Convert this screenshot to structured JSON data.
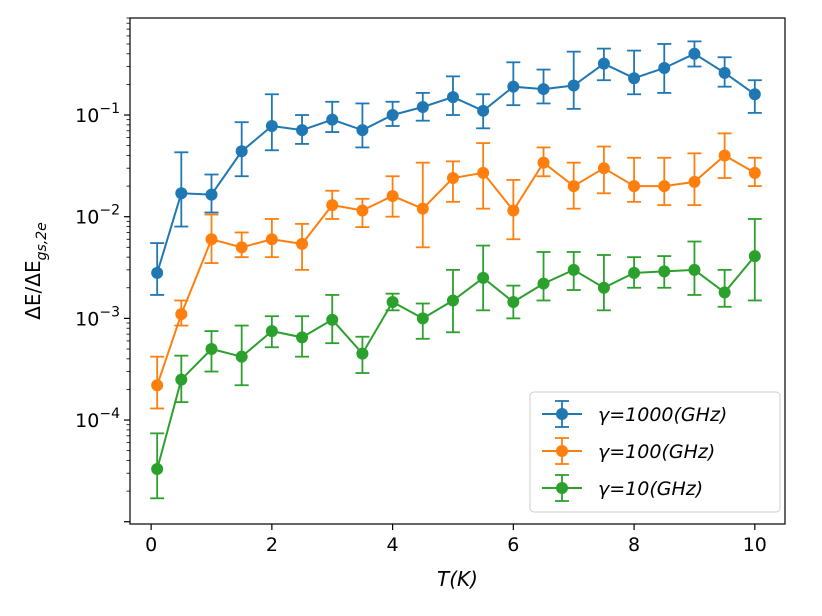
{
  "chart_data": {
    "type": "line",
    "xlabel": "T(K)",
    "ylabel": "ΔE/ΔE_gs,2e",
    "x_ticks": [
      "0",
      "2",
      "4",
      "6",
      "8",
      "10"
    ],
    "y_ticks": [
      "10^-4",
      "10^-3",
      "10^-2",
      "10^-1"
    ],
    "xlim": [
      -0.35,
      10.5
    ],
    "ylim": [
      9.5e-06,
      0.9
    ],
    "yscale": "log",
    "grid": false,
    "legend_position": "lower right",
    "x": [
      0.1,
      0.5,
      1.0,
      1.5,
      2.0,
      2.5,
      3.0,
      3.5,
      4.0,
      4.5,
      5.0,
      5.5,
      6.0,
      6.5,
      7.0,
      7.5,
      8.0,
      8.5,
      9.0,
      9.5,
      10.0
    ],
    "series": [
      {
        "name": "γ=1000(GHz)",
        "color": "#1f77b4",
        "values": [
          0.0028,
          0.017,
          0.0165,
          0.044,
          0.078,
          0.071,
          0.09,
          0.071,
          0.1,
          0.12,
          0.15,
          0.11,
          0.19,
          0.18,
          0.195,
          0.32,
          0.23,
          0.29,
          0.4,
          0.26,
          0.16
        ],
        "err_low": [
          0.0017,
          0.008,
          0.011,
          0.025,
          0.045,
          0.052,
          0.068,
          0.048,
          0.078,
          0.088,
          0.1,
          0.074,
          0.125,
          0.13,
          0.115,
          0.22,
          0.16,
          0.165,
          0.3,
          0.19,
          0.105
        ],
        "err_high": [
          0.0055,
          0.043,
          0.026,
          0.085,
          0.16,
          0.1,
          0.135,
          0.13,
          0.135,
          0.165,
          0.24,
          0.16,
          0.33,
          0.28,
          0.42,
          0.45,
          0.43,
          0.5,
          0.53,
          0.37,
          0.22
        ]
      },
      {
        "name": "γ=100(GHz)",
        "color": "#ff7f0e",
        "values": [
          0.00022,
          0.0011,
          0.006,
          0.005,
          0.006,
          0.0054,
          0.013,
          0.0115,
          0.016,
          0.012,
          0.024,
          0.027,
          0.0115,
          0.034,
          0.02,
          0.03,
          0.02,
          0.02,
          0.022,
          0.04,
          0.027
        ],
        "err_low": [
          0.00013,
          0.00085,
          0.0035,
          0.004,
          0.004,
          0.003,
          0.0095,
          0.0079,
          0.01,
          0.005,
          0.014,
          0.012,
          0.006,
          0.025,
          0.012,
          0.017,
          0.014,
          0.013,
          0.013,
          0.024,
          0.02
        ],
        "err_high": [
          0.00042,
          0.0015,
          0.0105,
          0.007,
          0.0095,
          0.0085,
          0.018,
          0.015,
          0.025,
          0.034,
          0.035,
          0.053,
          0.023,
          0.048,
          0.034,
          0.049,
          0.038,
          0.038,
          0.042,
          0.066,
          0.038
        ]
      },
      {
        "name": "γ=10(GHz)",
        "color": "#2ca02c",
        "values": [
          3.3e-05,
          0.00025,
          0.0005,
          0.00042,
          0.00075,
          0.00065,
          0.00097,
          0.00045,
          0.00145,
          0.001,
          0.0015,
          0.0025,
          0.00145,
          0.0022,
          0.003,
          0.002,
          0.0028,
          0.0029,
          0.003,
          0.0018,
          0.0041
        ],
        "err_low": [
          1.7e-05,
          0.00015,
          0.0003,
          0.00022,
          0.00052,
          0.00042,
          0.00057,
          0.00029,
          0.0012,
          0.00063,
          0.00073,
          0.0012,
          0.001,
          0.0015,
          0.0019,
          0.0012,
          0.002,
          0.002,
          0.0017,
          0.0013,
          0.0015
        ],
        "err_high": [
          7.4e-05,
          0.00043,
          0.00075,
          0.00085,
          0.00105,
          0.00105,
          0.0017,
          0.00066,
          0.00175,
          0.0014,
          0.003,
          0.0052,
          0.0021,
          0.0045,
          0.0045,
          0.0042,
          0.004,
          0.0041,
          0.0057,
          0.003,
          0.0095
        ]
      }
    ]
  }
}
